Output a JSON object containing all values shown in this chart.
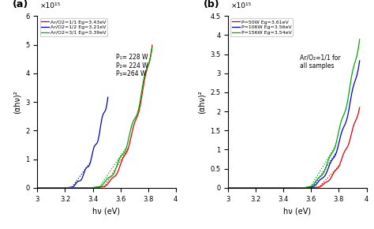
{
  "panel_a": {
    "title": "(a)",
    "xlabel": "hν (eV)",
    "ylabel": "(αhν)²",
    "xlim": [
      3.0,
      4.0
    ],
    "ylim": [
      0,
      6000000000000000.0
    ],
    "yticks": [
      0,
      1000000000000000.0,
      2000000000000000.0,
      3000000000000000.0,
      4000000000000000.0,
      5000000000000000.0,
      6000000000000000.0
    ],
    "ytick_labels": [
      "0",
      "1",
      "2",
      "3",
      "4",
      "5",
      "6"
    ],
    "yscale_label": "×10¹⁵",
    "annotation": "P₁= 228 W\nP₂= 224 W\nP₃=264 W",
    "series": [
      {
        "label": "Ar/O2=1/1 Eg=3.43eV",
        "color": "#e00000",
        "start_x": 3.43,
        "peak_x": 3.82,
        "Eg": 3.43
      },
      {
        "label": "Ar/O2=1/2 Eg=3.21eV",
        "color": "#0000cc",
        "start_x": 3.21,
        "peak_x": 3.5,
        "Eg": 3.21
      },
      {
        "label": "Ar/O2=3/1 Eg=3.39eV",
        "color": "#00aa00",
        "start_x": 3.39,
        "peak_x": 3.82,
        "Eg": 3.39
      }
    ]
  },
  "panel_b": {
    "title": "(b)",
    "xlabel": "hν (eV)",
    "ylabel": "(αhν)²",
    "xlim": [
      3.0,
      4.0
    ],
    "ylim": [
      0,
      4500000000000000.0
    ],
    "yticks": [
      0,
      500000000000000.0,
      1000000000000000.0,
      1500000000000000.0,
      2000000000000000.0,
      2500000000000000.0,
      3000000000000000.0,
      3500000000000000.0,
      4000000000000000.0,
      4500000000000000.0
    ],
    "ytick_labels": [
      "0",
      "0.5",
      "1",
      "1.5",
      "2",
      "2.5",
      "3",
      "3.5",
      "4",
      "4.5"
    ],
    "yscale_label": "×10¹⁵",
    "annotation": "Ar/O₂=1/1 for\nall samples",
    "series": [
      {
        "label": "P=50W Eg=3.61eV",
        "color": "#e00000",
        "start_x": 3.61,
        "peak_x": 3.94,
        "Eg": 3.61
      },
      {
        "label": "P=106W Eg=3.56eV",
        "color": "#0000cc",
        "start_x": 3.56,
        "peak_x": 3.94,
        "Eg": 3.56
      },
      {
        "label": "P=156W Eg=3.54eV",
        "color": "#00aa00",
        "start_x": 3.54,
        "peak_x": 3.94,
        "Eg": 3.54
      }
    ]
  }
}
